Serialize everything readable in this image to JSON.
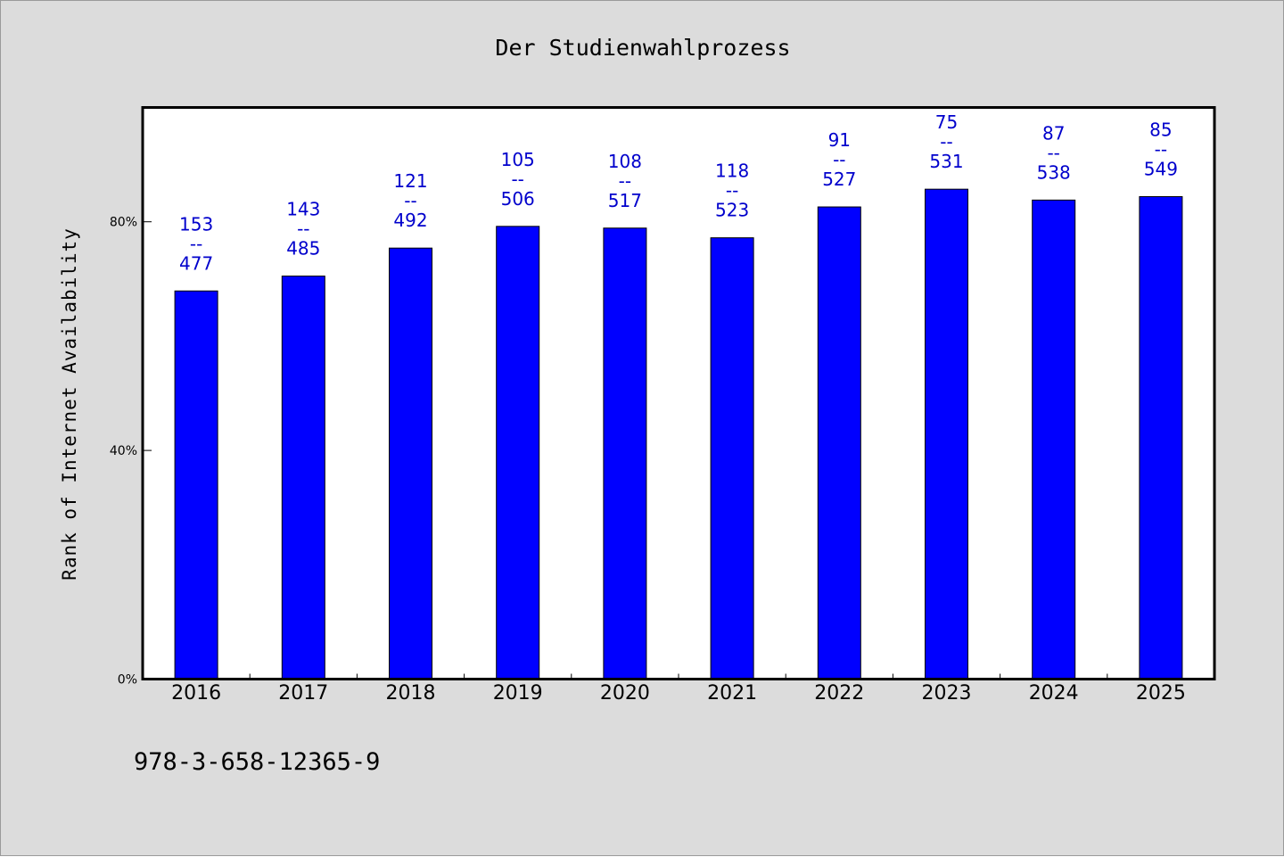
{
  "colors": {
    "background": "#dcdcdc",
    "plot_background": "#ffffff",
    "bar": "#0000ff",
    "data_label": "#0000cc"
  },
  "footer": {
    "isbn": "978-3-658-12365-9"
  },
  "chart_data": {
    "type": "bar",
    "title": "Der Studienwahlprozess",
    "xlabel": "",
    "ylabel": "Rank of Internet Availability",
    "ylim": [
      0,
      100
    ],
    "y_ticks": [
      0,
      40,
      80
    ],
    "y_tick_labels": [
      "0%",
      "40%",
      "80%"
    ],
    "grid": false,
    "legend": "none",
    "categories": [
      "2016",
      "2017",
      "2018",
      "2019",
      "2020",
      "2021",
      "2022",
      "2023",
      "2024",
      "2025"
    ],
    "values": [
      67.9,
      70.5,
      75.4,
      79.2,
      78.9,
      77.2,
      82.6,
      85.7,
      83.8,
      84.4
    ],
    "labels": [
      {
        "rank": "153",
        "separator": "--",
        "total": "477"
      },
      {
        "rank": "143",
        "separator": "--",
        "total": "485"
      },
      {
        "rank": "121",
        "separator": "--",
        "total": "492"
      },
      {
        "rank": "105",
        "separator": "--",
        "total": "506"
      },
      {
        "rank": "108",
        "separator": "--",
        "total": "517"
      },
      {
        "rank": "118",
        "separator": "--",
        "total": "523"
      },
      {
        "rank": "91",
        "separator": "--",
        "total": "527"
      },
      {
        "rank": "75",
        "separator": "--",
        "total": "531"
      },
      {
        "rank": "87",
        "separator": "--",
        "total": "538"
      },
      {
        "rank": "85",
        "separator": "--",
        "total": "549"
      }
    ]
  }
}
